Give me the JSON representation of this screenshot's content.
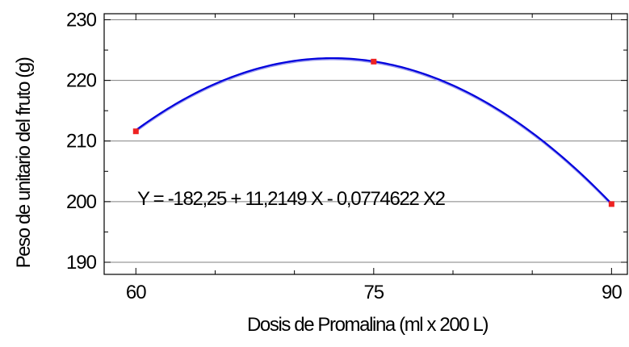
{
  "chart_data": {
    "type": "scatter",
    "xlabel": "Dosis de Promalina (ml x 200 L)",
    "ylabel": "Peso de unitario del fruto (g)",
    "xlim": [
      58,
      91
    ],
    "ylim": [
      188,
      231
    ],
    "x_ticks": [
      60,
      75,
      90
    ],
    "y_ticks": [
      190,
      200,
      210,
      220,
      230
    ],
    "grid": "horizontal",
    "legend": "none",
    "points": [
      {
        "x": 60,
        "y": 211.6
      },
      {
        "x": 75,
        "y": 223.1
      },
      {
        "x": 90,
        "y": 199.6
      }
    ],
    "fit": {
      "type": "quadratic",
      "a": -182.25,
      "b": 11.2149,
      "c": -0.0774622,
      "x_range": [
        60,
        90
      ],
      "equation_label": "Y = -182,25 + 11,2149 X - 0,0774622  X2"
    },
    "colors": {
      "fit_line": "#0000dd",
      "fit_shadow": "#9999ee",
      "points": "#ee2222",
      "grid": "#808080",
      "axis": "#000000"
    }
  }
}
